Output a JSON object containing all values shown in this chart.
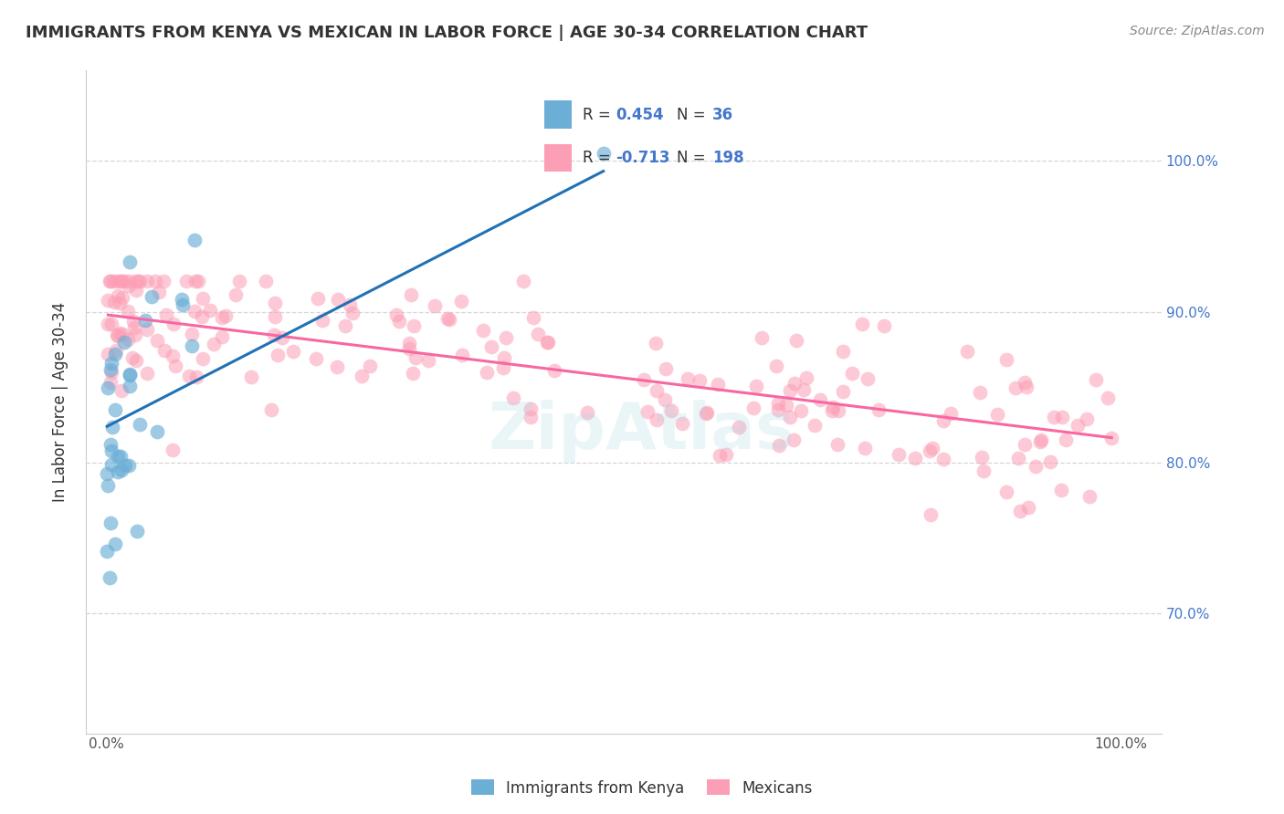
{
  "title": "IMMIGRANTS FROM KENYA VS MEXICAN IN LABOR FORCE | AGE 30-34 CORRELATION CHART",
  "source": "Source: ZipAtlas.com",
  "ylabel": "In Labor Force | Age 30-34",
  "kenya_R": 0.454,
  "kenya_N": 36,
  "mexico_R": -0.713,
  "mexico_N": 198,
  "kenya_color": "#6baed6",
  "mexico_color": "#fc9eb5",
  "kenya_line_color": "#2171b5",
  "mexico_line_color": "#f768a1",
  "background_color": "#ffffff",
  "grid_color": "#cccccc",
  "title_color": "#333333",
  "label_color": "#4477cc",
  "right_tick_color": "#4477cc",
  "ytick_values": [
    70,
    80,
    90,
    100
  ],
  "ytick_labels": [
    "70.0%",
    "80.0%",
    "90.0%",
    "100.0%"
  ],
  "xtick_values": [
    0,
    100
  ],
  "xtick_labels": [
    "0.0%",
    "100.0%"
  ]
}
